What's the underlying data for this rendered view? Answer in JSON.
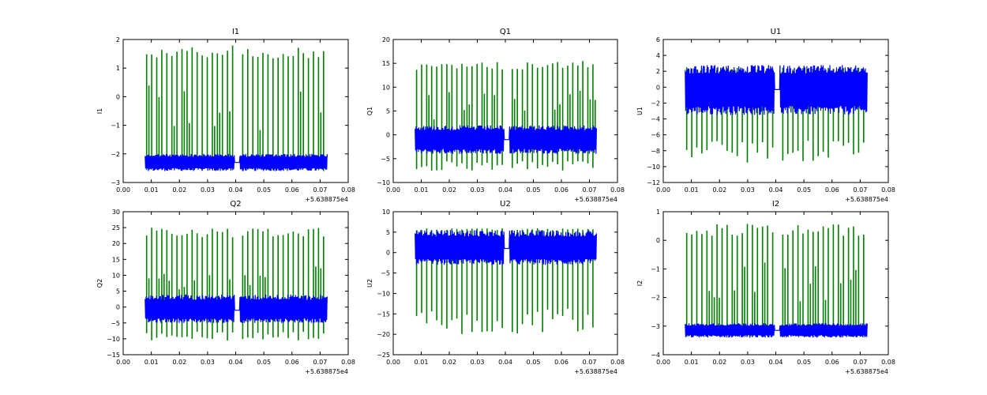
{
  "colors": {
    "series_blue": "#0000ff",
    "series_green": "#007f00",
    "axes": "#000000"
  },
  "chart_data": [
    {
      "type": "line",
      "title": "I1",
      "xlabel": "",
      "ylabel": "I1",
      "xlim": [
        0.0,
        0.08
      ],
      "ylim": [
        -3,
        2
      ],
      "xticks": [
        "0.00",
        "0.01",
        "0.02",
        "0.03",
        "0.04",
        "0.05",
        "0.06",
        "0.07",
        "0.08"
      ],
      "yticks": [
        "−3",
        "−2",
        "−1",
        "0",
        "1",
        "2"
      ],
      "x_offset_label": "+5.638875e4",
      "series": [
        {
          "name": "green",
          "color": "#007f00",
          "x_range": [
            0.0078,
            0.0725
          ],
          "pulses": 36,
          "base": -2.2,
          "low": -2.6,
          "high": 1.8,
          "gap": [
            0.0395,
            0.0415
          ]
        },
        {
          "name": "blue",
          "color": "#0000ff",
          "x_range": [
            0.0078,
            0.0725
          ],
          "center": -2.3,
          "band_low": -2.6,
          "band_high": -2.0,
          "gap": [
            0.0395,
            0.0415
          ]
        }
      ]
    },
    {
      "type": "line",
      "title": "Q1",
      "xlabel": "",
      "ylabel": "Q1",
      "xlim": [
        0.0,
        0.08
      ],
      "ylim": [
        -10,
        20
      ],
      "xticks": [
        "0.00",
        "0.01",
        "0.02",
        "0.03",
        "0.04",
        "0.05",
        "0.06",
        "0.07",
        "0.08"
      ],
      "yticks": [
        "−10",
        "−5",
        "0",
        "5",
        "10",
        "15",
        "20"
      ],
      "x_offset_label": "+5.638875e4",
      "series": [
        {
          "name": "green",
          "color": "#007f00",
          "x_range": [
            0.0078,
            0.0725
          ],
          "pulses": 36,
          "base": -1,
          "low": -7.5,
          "high": 15.5,
          "gap": [
            0.0395,
            0.0415
          ]
        },
        {
          "name": "blue",
          "color": "#0000ff",
          "x_range": [
            0.0078,
            0.0725
          ],
          "center": -1,
          "band_low": -4,
          "band_high": 2,
          "gap": [
            0.0395,
            0.0415
          ]
        }
      ]
    },
    {
      "type": "line",
      "title": "U1",
      "xlabel": "",
      "ylabel": "U1",
      "xlim": [
        0.0,
        0.08
      ],
      "ylim": [
        -12,
        6
      ],
      "xticks": [
        "0.00",
        "0.01",
        "0.02",
        "0.03",
        "0.04",
        "0.05",
        "0.06",
        "0.07",
        "0.08"
      ],
      "yticks": [
        "−12",
        "−10",
        "−8",
        "−6",
        "−4",
        "−2",
        "0",
        "2",
        "4",
        "6"
      ],
      "x_offset_label": "+5.638875e4",
      "series": [
        {
          "name": "green",
          "color": "#007f00",
          "x_range": [
            0.0078,
            0.0725
          ],
          "pulses": 36,
          "base": 0,
          "low": -9.5,
          "high": 2.5,
          "gap": [
            0.0395,
            0.0415
          ]
        },
        {
          "name": "blue",
          "color": "#0000ff",
          "x_range": [
            0.0078,
            0.0725
          ],
          "center": -0.3,
          "band_low": -3.5,
          "band_high": 2.8,
          "gap": [
            0.0395,
            0.0415
          ]
        }
      ]
    },
    {
      "type": "line",
      "title": "Q2",
      "xlabel": "",
      "ylabel": "Q2",
      "xlim": [
        0.0,
        0.08
      ],
      "ylim": [
        -15,
        30
      ],
      "xticks": [
        "0.00",
        "0.01",
        "0.02",
        "0.03",
        "0.04",
        "0.05",
        "0.06",
        "0.07",
        "0.08"
      ],
      "yticks": [
        "−15",
        "−10",
        "−5",
        "0",
        "5",
        "10",
        "15",
        "20",
        "25",
        "30"
      ],
      "x_offset_label": "+5.638875e4",
      "series": [
        {
          "name": "green",
          "color": "#007f00",
          "x_range": [
            0.0078,
            0.0725
          ],
          "pulses": 36,
          "base": -1,
          "low": -10.5,
          "high": 25,
          "gap": [
            0.0395,
            0.0415
          ]
        },
        {
          "name": "blue",
          "color": "#0000ff",
          "x_range": [
            0.0078,
            0.0725
          ],
          "center": -1,
          "band_low": -5,
          "band_high": 4,
          "gap": [
            0.0395,
            0.0415
          ]
        }
      ]
    },
    {
      "type": "line",
      "title": "U2",
      "xlabel": "",
      "ylabel": "U2",
      "xlim": [
        0.0,
        0.08
      ],
      "ylim": [
        -25,
        10
      ],
      "xticks": [
        "0.00",
        "0.01",
        "0.02",
        "0.03",
        "0.04",
        "0.05",
        "0.06",
        "0.07",
        "0.08"
      ],
      "yticks": [
        "−25",
        "−20",
        "−15",
        "−10",
        "−5",
        "0",
        "5",
        "10"
      ],
      "x_offset_label": "+5.638875e4",
      "series": [
        {
          "name": "green",
          "color": "#007f00",
          "x_range": [
            0.0078,
            0.0725
          ],
          "pulses": 36,
          "base": 1,
          "low": -20,
          "high": 6,
          "gap": [
            0.0395,
            0.0415
          ]
        },
        {
          "name": "blue",
          "color": "#0000ff",
          "x_range": [
            0.0078,
            0.0725
          ],
          "center": 1,
          "band_low": -3,
          "band_high": 5.5,
          "gap": [
            0.0395,
            0.0415
          ]
        }
      ]
    },
    {
      "type": "line",
      "title": "I2",
      "xlabel": "",
      "ylabel": "I2",
      "xlim": [
        0.0,
        0.08
      ],
      "ylim": [
        -4,
        1
      ],
      "xticks": [
        "0.00",
        "0.01",
        "0.02",
        "0.03",
        "0.04",
        "0.05",
        "0.06",
        "0.07",
        "0.08"
      ],
      "yticks": [
        "−4",
        "−3",
        "−2",
        "−1",
        "0",
        "1"
      ],
      "x_offset_label": "+5.638875e4",
      "series": [
        {
          "name": "green",
          "color": "#007f00",
          "x_range": [
            0.0078,
            0.0725
          ],
          "pulses": 36,
          "base": -3.1,
          "low": -3.4,
          "high": 0.6,
          "gap": [
            0.0395,
            0.0415
          ]
        },
        {
          "name": "blue",
          "color": "#0000ff",
          "x_range": [
            0.0078,
            0.0725
          ],
          "center": -3.15,
          "band_low": -3.4,
          "band_high": -2.9,
          "gap": [
            0.0395,
            0.0415
          ]
        }
      ]
    }
  ]
}
